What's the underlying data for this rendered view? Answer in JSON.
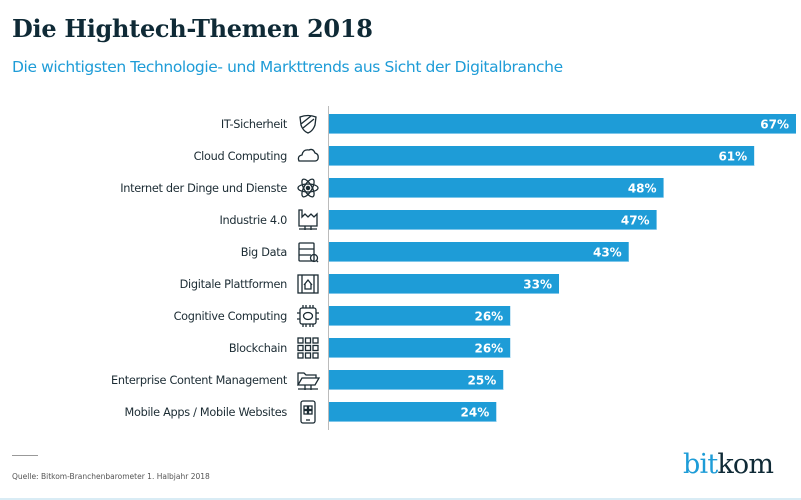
{
  "header": {
    "title": "Die Hightech-Themen 2018",
    "subtitle": "Die wichtigsten Technologie- und Markttrends aus Sicht der Digitalbranche"
  },
  "footer": {
    "source": "Quelle: Bitkom-Branchenbarometer 1. Halbjahr 2018",
    "logo_part1": "bit",
    "logo_part2": "kom"
  },
  "colors": {
    "bar": "#1e9cd7",
    "title": "#0f2a36",
    "accent": "#1e9cd7"
  },
  "chart_data": {
    "type": "bar",
    "orientation": "horizontal",
    "title": "Die Hightech-Themen 2018",
    "subtitle": "Die wichtigsten Technologie- und Markttrends aus Sicht der Digitalbranche",
    "xlabel": "",
    "ylabel": "",
    "unit": "%",
    "xlim": [
      0,
      67
    ],
    "grid": false,
    "categories": [
      "IT-Sicherheit",
      "Cloud Computing",
      "Internet der Dinge und Dienste",
      "Industrie 4.0",
      "Big Data",
      "Digitale Plattformen",
      "Cognitive Computing",
      "Blockchain",
      "Enterprise Content Management",
      "Mobile Apps / Mobile Websites"
    ],
    "values": [
      67,
      61,
      48,
      47,
      43,
      33,
      26,
      26,
      25,
      24
    ],
    "data_labels": [
      "67%",
      "61%",
      "48%",
      "47%",
      "43%",
      "33%",
      "26%",
      "26%",
      "25%",
      "24%"
    ],
    "icons": [
      "shield-icon",
      "cloud-icon",
      "atom-icon",
      "factory-icon",
      "server-search-icon",
      "platform-home-icon",
      "chip-brain-icon",
      "blockchain-grid-icon",
      "folder-icon",
      "mobile-phone-icon"
    ]
  }
}
